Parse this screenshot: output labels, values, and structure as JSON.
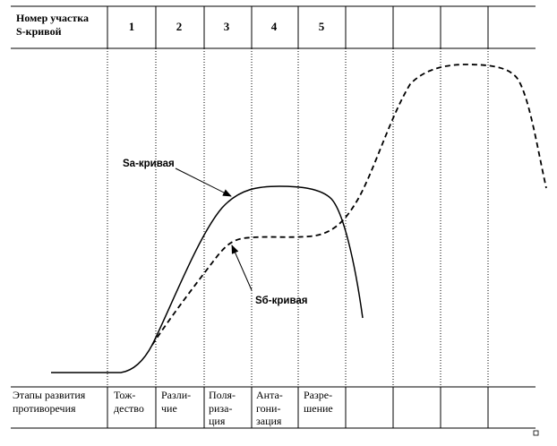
{
  "header": {
    "label_lines": [
      "Номер участка",
      "S-кривой"
    ],
    "column_numbers": [
      "1",
      "2",
      "3",
      "4",
      "5"
    ]
  },
  "footer": {
    "label_lines": [
      "Этапы развития",
      "противоречия"
    ],
    "stages": [
      [
        "Тож-",
        "дество"
      ],
      [
        "Разли-",
        "чие"
      ],
      [
        "Поля-",
        "риза-",
        "ция"
      ],
      [
        "Анта-",
        "гони-",
        "зация"
      ],
      [
        "Разре-",
        "шение"
      ]
    ]
  },
  "curves": {
    "sa_label": "Sa-кривая",
    "sb_label": "Sб-кривая"
  },
  "colors": {
    "line": "#000000",
    "background": "#ffffff"
  }
}
